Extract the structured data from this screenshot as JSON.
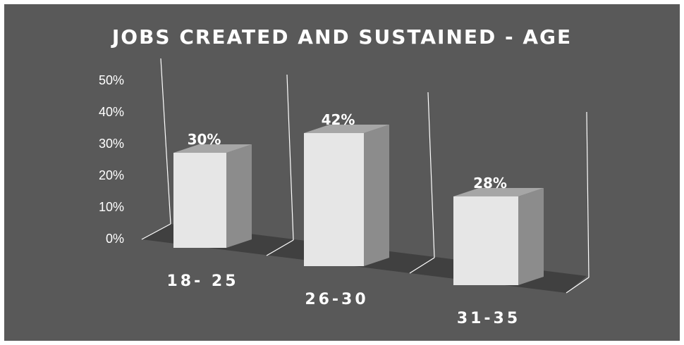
{
  "chart_data": {
    "type": "bar",
    "title": "JOBS CREATED AND SUSTAINED - AGE",
    "xlabel": "",
    "ylabel": "",
    "categories": [
      "18- 25",
      "26-30",
      "31-35"
    ],
    "values": [
      30,
      42,
      28
    ],
    "data_labels": [
      "30%",
      "42%",
      "28%"
    ],
    "y_ticks": [
      "0%",
      "10%",
      "20%",
      "30%",
      "40%",
      "50%"
    ],
    "ylim": [
      0,
      50
    ],
    "style": "3d-column",
    "grid": false,
    "colors": {
      "background": "#595959",
      "bar_front": "#e6e6e6",
      "bar_side": "#8c8c8c",
      "bar_top": "#a6a6a6",
      "floor": "#404040",
      "axis_lines": "#ffffff",
      "text": "#ffffff"
    }
  }
}
